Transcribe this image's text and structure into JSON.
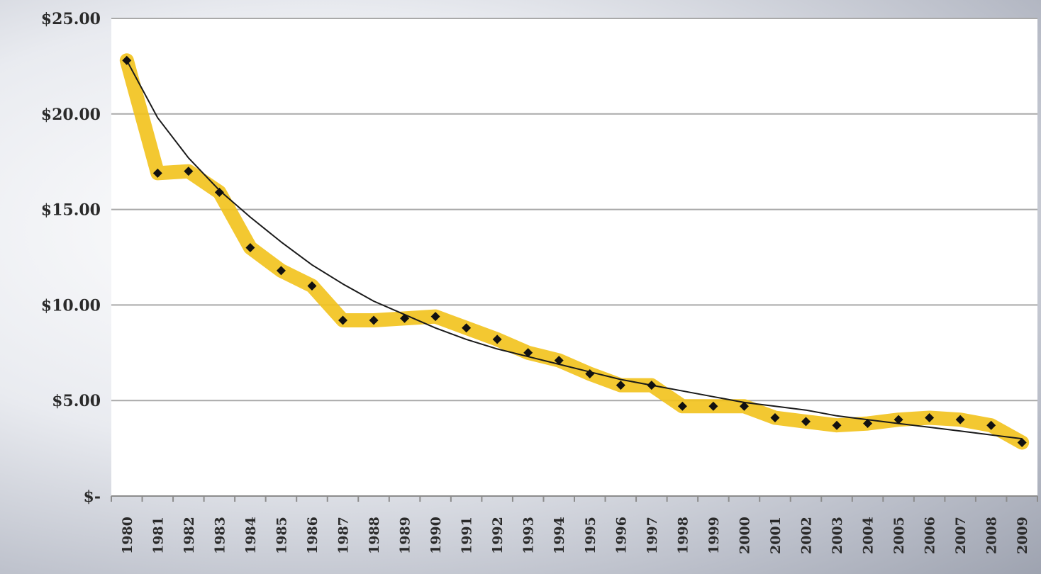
{
  "chart_data": {
    "type": "line",
    "title": "",
    "xlabel": "",
    "ylabel": "",
    "ylim": [
      0,
      25
    ],
    "grid": true,
    "legend": "none",
    "y_tick_values": [
      0,
      5,
      10,
      15,
      20,
      25
    ],
    "y_tick_labels": [
      "$-",
      "$5.00",
      "$10.00",
      "$15.00",
      "$20.00",
      "$25.00"
    ],
    "categories": [
      "1980",
      "1981",
      "1982",
      "1983",
      "1984",
      "1985",
      "1986",
      "1987",
      "1988",
      "1989",
      "1990",
      "1991",
      "1992",
      "1993",
      "1994",
      "1995",
      "1996",
      "1997",
      "1998",
      "1999",
      "2000",
      "2001",
      "2002",
      "2003",
      "2004",
      "2005",
      "2006",
      "2007",
      "2008",
      "2009"
    ],
    "series": [
      {
        "values": [
          22.8,
          16.9,
          17.0,
          15.9,
          13.0,
          11.8,
          11.0,
          9.2,
          9.2,
          9.3,
          9.4,
          8.8,
          8.2,
          7.5,
          7.1,
          6.4,
          5.8,
          5.8,
          4.7,
          4.7,
          4.7,
          4.1,
          3.9,
          3.7,
          3.8,
          4.0,
          4.1,
          4.0,
          3.7,
          2.8
        ],
        "color": "#f2c21b",
        "marker_color": "#111111"
      },
      {
        "kind": "trendline",
        "values": [
          22.8,
          19.8,
          17.7,
          16.0,
          14.6,
          13.3,
          12.1,
          11.1,
          10.2,
          9.5,
          8.8,
          8.2,
          7.7,
          7.3,
          6.9,
          6.5,
          6.1,
          5.8,
          5.5,
          5.2,
          4.9,
          4.7,
          4.5,
          4.2,
          4.0,
          3.8,
          3.6,
          3.4,
          3.2,
          3.0
        ],
        "color": "#1a1a1a"
      }
    ]
  }
}
